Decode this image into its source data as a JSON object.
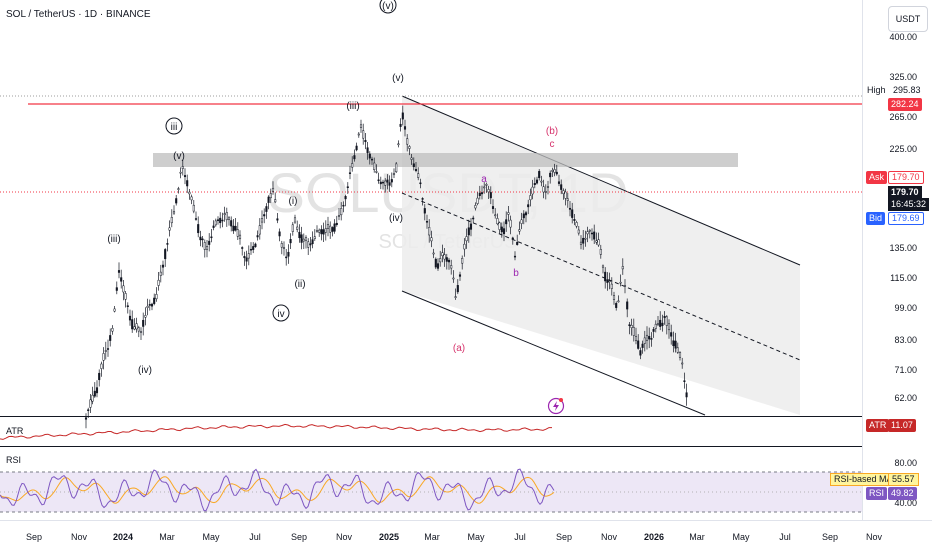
{
  "header": {
    "symbol_title": "SOL / TetherUS · 1D · BINANCE",
    "currency": "USDT"
  },
  "watermark": {
    "main": "SOLUSDT, 1D",
    "sub": "SOL / TetherUS"
  },
  "price_axis": {
    "ticks": [
      "400.00",
      "325.00",
      "265.00",
      "225.00",
      "135.00",
      "115.00",
      "99.00",
      "83.00",
      "71.00",
      "62.00"
    ],
    "high": {
      "label": "High",
      "value": "295.83"
    },
    "red_level": "282.24",
    "ask": {
      "label": "Ask",
      "value": "179.70"
    },
    "last": {
      "value": "179.70",
      "countdown": "16:45:32"
    },
    "bid": {
      "label": "Bid",
      "value": "179.69"
    }
  },
  "time_axis": {
    "labels": [
      "Sep",
      "Nov",
      "2024",
      "Mar",
      "May",
      "Jul",
      "Sep",
      "Nov",
      "2025",
      "Mar",
      "May",
      "Jul",
      "Sep",
      "Nov",
      "2026",
      "Mar",
      "May",
      "Jul",
      "Sep",
      "Nov"
    ],
    "bold": [
      "2024",
      "2025",
      "2026"
    ]
  },
  "wave_labels": [
    {
      "text": "(v)",
      "color": "#131722",
      "circled": true
    },
    {
      "text": "(v)",
      "color": "#131722",
      "circled": false
    },
    {
      "text": "(iii)",
      "color": "#131722",
      "circled": false
    },
    {
      "text": "iii",
      "color": "#131722",
      "circled": true
    },
    {
      "text": "(v)",
      "color": "#131722",
      "circled": false
    },
    {
      "text": "(iii)",
      "color": "#131722",
      "circled": false
    },
    {
      "text": "(i)",
      "color": "#131722",
      "circled": false
    },
    {
      "text": "(ii)",
      "color": "#131722",
      "circled": false
    },
    {
      "text": "iv",
      "color": "#131722",
      "circled": true
    },
    {
      "text": "(iv)",
      "color": "#131722",
      "circled": false
    },
    {
      "text": "(iv)",
      "color": "#131722",
      "circled": false
    },
    {
      "text": "(a)",
      "color": "#d6336c",
      "circled": false
    },
    {
      "text": "a",
      "color": "#9c27b0",
      "circled": false
    },
    {
      "text": "b",
      "color": "#9c27b0",
      "circled": false
    },
    {
      "text": "(b)",
      "color": "#d6336c",
      "circled": false
    },
    {
      "text": "c",
      "color": "#d6336c",
      "circled": false
    }
  ],
  "atr": {
    "label": "ATR",
    "tag": "ATR",
    "value": "11.07",
    "color": "#c62828"
  },
  "rsi": {
    "label": "RSI",
    "ticks": [
      "80.00",
      "40.00"
    ],
    "ma_label": "RSI-based MA",
    "ma_value": "55.57",
    "tag": "RSI",
    "value": "49.82",
    "line_color": "#7e57c2",
    "ma_color": "#f9a825"
  },
  "colors": {
    "red_level": "#f23645",
    "ask": "#f23645",
    "bid": "#2962ff",
    "last": "#131722",
    "candle": "#131722",
    "channel_fill": "#ececec",
    "resistance_band": "#bdbdbd",
    "rsi_band": "#ede7f6"
  }
}
